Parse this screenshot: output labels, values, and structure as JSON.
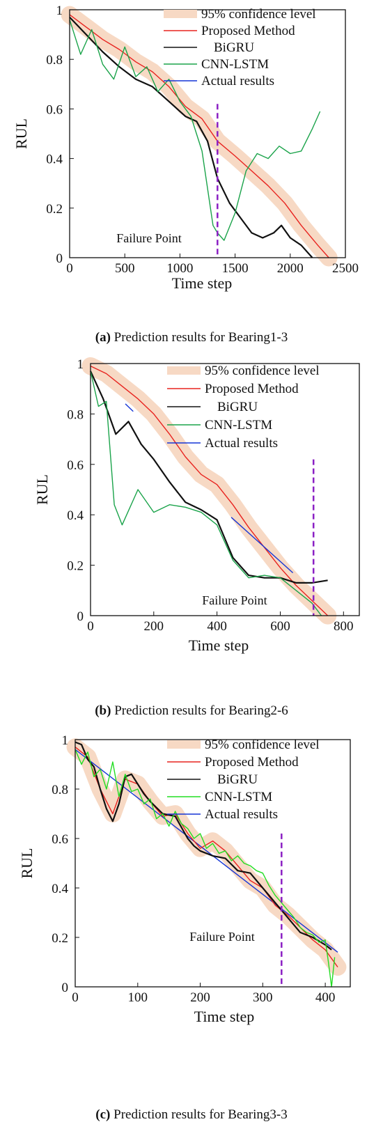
{
  "chart_data": [
    {
      "type": "line",
      "ylabel": "RUL",
      "xlabel": "Time step",
      "xlim": [
        0,
        2500
      ],
      "ylim": [
        0,
        1
      ],
      "xticks": [
        0,
        500,
        1000,
        1500,
        2000,
        2500
      ],
      "yticks": [
        0,
        0.2,
        0.4,
        0.6,
        0.8,
        1
      ],
      "ytick_labels": [
        "0",
        "0.2",
        "0.4",
        "0.6",
        "0.8",
        "1"
      ],
      "failure_point": {
        "x": 1340,
        "label": "Failure Point"
      },
      "caption_prefix": "(a)",
      "caption_text": " Prediction results for Bearing1-3",
      "legend": [
        "95% confidence level",
        "Proposed Method",
        "BiGRU",
        "CNN-LSTM",
        "Actual results"
      ],
      "series": [
        {
          "name": "Proposed Method",
          "color": "#e8231f",
          "x": [
            0,
            150,
            300,
            450,
            600,
            750,
            900,
            1050,
            1200,
            1340,
            1500,
            1650,
            1800,
            1950,
            2100,
            2250,
            2350
          ],
          "y": [
            0.98,
            0.93,
            0.88,
            0.84,
            0.79,
            0.75,
            0.69,
            0.61,
            0.56,
            0.47,
            0.41,
            0.35,
            0.29,
            0.22,
            0.13,
            0.05,
            0.0
          ]
        },
        {
          "name": "BiGRU",
          "color": "#111111",
          "x": [
            0,
            150,
            300,
            450,
            600,
            750,
            900,
            1050,
            1150,
            1250,
            1340,
            1450,
            1550,
            1650,
            1750,
            1850,
            1920,
            2000,
            2100,
            2200
          ],
          "y": [
            0.97,
            0.9,
            0.83,
            0.77,
            0.72,
            0.69,
            0.63,
            0.57,
            0.55,
            0.47,
            0.32,
            0.22,
            0.16,
            0.1,
            0.08,
            0.1,
            0.13,
            0.08,
            0.05,
            0.0
          ]
        },
        {
          "name": "CNN-LSTM",
          "color": "#1aa34a",
          "x": [
            0,
            100,
            200,
            300,
            400,
            500,
            600,
            700,
            800,
            900,
            1000,
            1100,
            1200,
            1300,
            1340,
            1400,
            1500,
            1600,
            1700,
            1800,
            1900,
            2000,
            2100,
            2200,
            2270
          ],
          "y": [
            0.96,
            0.82,
            0.92,
            0.78,
            0.72,
            0.85,
            0.73,
            0.77,
            0.67,
            0.72,
            0.63,
            0.57,
            0.43,
            0.13,
            0.1,
            0.07,
            0.18,
            0.35,
            0.42,
            0.4,
            0.45,
            0.42,
            0.43,
            0.52,
            0.59
          ]
        }
      ],
      "confidence_band": {
        "color": "#f7d9c4",
        "width": 0.07
      }
    },
    {
      "type": "line",
      "ylabel": "RUL",
      "xlabel": "Time step",
      "xlim": [
        0,
        850
      ],
      "ylim": [
        0,
        1
      ],
      "xticks": [
        0,
        200,
        400,
        600,
        800
      ],
      "yticks": [
        0,
        0.2,
        0.4,
        0.6,
        0.8,
        1
      ],
      "ytick_labels": [
        "0",
        "0.2",
        "0.4",
        "0.6",
        "0.8",
        "1"
      ],
      "failure_point": {
        "x": 705,
        "label": "Failure Point"
      },
      "caption_prefix": "(b)",
      "caption_text": " Prediction results for Bearing2-6",
      "legend": [
        "95% confidence level",
        "Proposed Method",
        "BiGRU",
        "CNN-LSTM",
        "Actual results"
      ],
      "series": [
        {
          "name": "Proposed Method",
          "color": "#e8231f",
          "x": [
            0,
            50,
            100,
            150,
            200,
            250,
            300,
            350,
            400,
            450,
            500,
            550,
            600,
            650,
            700,
            750
          ],
          "y": [
            0.99,
            0.96,
            0.91,
            0.86,
            0.8,
            0.72,
            0.63,
            0.56,
            0.52,
            0.44,
            0.35,
            0.27,
            0.19,
            0.12,
            0.06,
            0.0
          ]
        },
        {
          "name": "BiGRU",
          "color": "#111111",
          "x": [
            0,
            40,
            80,
            120,
            160,
            200,
            250,
            300,
            350,
            400,
            450,
            500,
            550,
            600,
            650,
            700,
            750
          ],
          "y": [
            0.97,
            0.86,
            0.72,
            0.77,
            0.68,
            0.62,
            0.53,
            0.45,
            0.42,
            0.38,
            0.23,
            0.16,
            0.15,
            0.15,
            0.13,
            0.13,
            0.14
          ]
        },
        {
          "name": "CNN-LSTM",
          "color": "#1aa34a",
          "x": [
            0,
            25,
            50,
            75,
            100,
            150,
            200,
            250,
            300,
            350,
            400,
            450,
            500,
            550,
            600,
            650,
            700,
            730
          ],
          "y": [
            0.97,
            0.83,
            0.85,
            0.44,
            0.36,
            0.5,
            0.41,
            0.44,
            0.43,
            0.41,
            0.36,
            0.22,
            0.15,
            0.16,
            0.15,
            0.1,
            0.05,
            0.0
          ]
        },
        {
          "name": "Actual results",
          "color": "#1535d6",
          "segments": [
            [
              [
                110,
                0.84
              ],
              [
                135,
                0.81
              ]
            ],
            [
              [
                445,
                0.39
              ],
              [
                640,
                0.17
              ]
            ]
          ]
        }
      ],
      "confidence_band": {
        "color": "#f7d9c4",
        "width": 0.07
      }
    },
    {
      "type": "line",
      "ylabel": "RUL",
      "xlabel": "Time step",
      "xlim": [
        0,
        440
      ],
      "ylim": [
        0,
        1
      ],
      "xticks": [
        0,
        100,
        200,
        300,
        400
      ],
      "yticks": [
        0,
        0.2,
        0.4,
        0.6,
        0.8,
        1
      ],
      "ytick_labels": [
        "0",
        "0.2",
        "0.4",
        "0.6",
        "0.8",
        "1"
      ],
      "failure_point": {
        "x": 330,
        "label": "Failure Point"
      },
      "caption_prefix": "(c)",
      "caption_text": " Prediction results for Bearing3-3",
      "legend": [
        "95% confidence level",
        "Proposed Method",
        "BiGRU",
        "CNN-LSTM",
        "Actual results"
      ],
      "series": [
        {
          "name": "Actual results",
          "color": "#1535d6",
          "x": [
            0,
            420
          ],
          "y": [
            0.96,
            0.14
          ]
        },
        {
          "name": "Proposed Method",
          "color": "#e8231f",
          "x": [
            0,
            20,
            40,
            60,
            80,
            100,
            120,
            140,
            160,
            180,
            200,
            220,
            240,
            260,
            280,
            300,
            320,
            340,
            360,
            380,
            400,
            420
          ],
          "y": [
            0.97,
            0.93,
            0.8,
            0.7,
            0.84,
            0.82,
            0.75,
            0.69,
            0.7,
            0.62,
            0.56,
            0.59,
            0.55,
            0.49,
            0.43,
            0.4,
            0.33,
            0.29,
            0.24,
            0.19,
            0.15,
            0.08
          ]
        },
        {
          "name": "BiGRU",
          "color": "#111111",
          "x": [
            0,
            10,
            20,
            30,
            40,
            50,
            60,
            70,
            80,
            90,
            100,
            110,
            120,
            140,
            160,
            180,
            190,
            200,
            220,
            240,
            260,
            280,
            300,
            320,
            340,
            360,
            380,
            400,
            410
          ],
          "y": [
            0.99,
            0.98,
            0.92,
            0.89,
            0.8,
            0.72,
            0.67,
            0.74,
            0.85,
            0.86,
            0.82,
            0.78,
            0.75,
            0.7,
            0.69,
            0.6,
            0.57,
            0.55,
            0.53,
            0.52,
            0.47,
            0.46,
            0.4,
            0.34,
            0.28,
            0.22,
            0.2,
            0.17,
            0.15
          ]
        },
        {
          "name": "CNN-LSTM",
          "color": "#22dd22",
          "x": [
            0,
            10,
            20,
            30,
            40,
            50,
            60,
            70,
            80,
            90,
            100,
            110,
            120,
            130,
            140,
            150,
            160,
            170,
            180,
            190,
            200,
            210,
            220,
            230,
            240,
            250,
            260,
            270,
            280,
            290,
            300,
            310,
            320,
            330,
            340,
            350,
            360,
            370,
            380,
            390,
            400,
            405,
            410,
            415
          ],
          "y": [
            0.96,
            0.9,
            0.95,
            0.85,
            0.88,
            0.8,
            0.91,
            0.77,
            0.86,
            0.79,
            0.8,
            0.74,
            0.76,
            0.68,
            0.7,
            0.65,
            0.71,
            0.66,
            0.64,
            0.6,
            0.62,
            0.56,
            0.58,
            0.54,
            0.55,
            0.51,
            0.53,
            0.5,
            0.49,
            0.47,
            0.46,
            0.41,
            0.37,
            0.34,
            0.31,
            0.28,
            0.24,
            0.22,
            0.21,
            0.18,
            0.19,
            0.1,
            0.0,
            0.12
          ]
        }
      ],
      "confidence_band": {
        "color": "#f7d9c4",
        "width": 0.07
      }
    }
  ]
}
